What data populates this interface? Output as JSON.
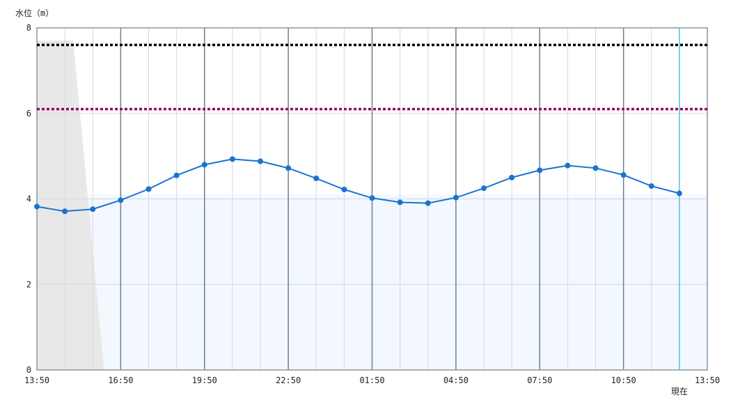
{
  "chart_data": {
    "type": "line",
    "ylabel": "水位（m）",
    "ylim": [
      0,
      8
    ],
    "y_ticks": [
      0,
      2,
      4,
      6,
      8
    ],
    "x_ticks": [
      "13:50",
      "16:50",
      "19:50",
      "22:50",
      "01:50",
      "04:50",
      "07:50",
      "10:50",
      "13:50"
    ],
    "now_label": "現在",
    "x": [
      "13:50",
      "14:50",
      "15:50",
      "16:50",
      "17:50",
      "18:50",
      "19:50",
      "20:50",
      "21:50",
      "22:50",
      "23:50",
      "00:50",
      "01:50",
      "02:50",
      "03:50",
      "04:50",
      "05:50",
      "06:50",
      "07:50",
      "08:50",
      "09:50",
      "10:50",
      "11:50",
      "12:50"
    ],
    "series": [
      {
        "values": [
          3.82,
          3.71,
          3.76,
          3.97,
          4.23,
          4.55,
          4.8,
          4.93,
          4.88,
          4.72,
          4.48,
          4.22,
          4.02,
          3.92,
          3.9,
          4.03,
          4.25,
          4.5,
          4.67,
          4.78,
          4.72,
          4.56,
          4.3,
          4.13
        ],
        "color": "#1a73d0"
      }
    ],
    "thresholds": [
      {
        "value": 7.6,
        "color": "#000000",
        "style": "dotted"
      },
      {
        "value": 6.1,
        "color": "#990066",
        "style": "dotted"
      }
    ],
    "reference_band_top": 4.1,
    "shaded_region_color": "#e8e8e8",
    "now_line_color": "#4fc3e0",
    "grid": true
  }
}
